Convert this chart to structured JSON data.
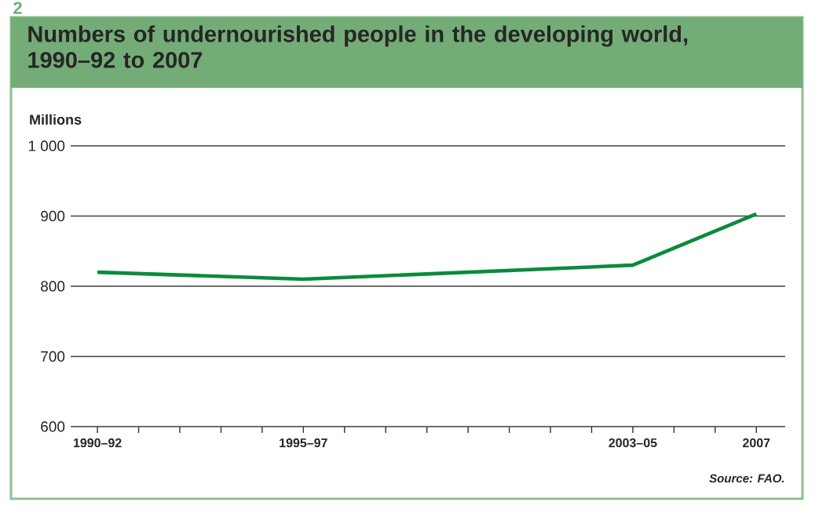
{
  "chart_data": {
    "type": "line",
    "title": "Numbers of undernourished people in the developing world, 1990–92 to 2007",
    "ylabel": "Millions",
    "categories": [
      "1990–92",
      null,
      null,
      null,
      null,
      "1995–97",
      null,
      null,
      null,
      null,
      null,
      null,
      null,
      "2003–05",
      null,
      null,
      "2007"
    ],
    "series": [
      {
        "color": "#0b8a3c",
        "values": [
          820,
          null,
          null,
          null,
          null,
          810,
          null,
          null,
          null,
          null,
          null,
          null,
          null,
          830,
          null,
          null,
          903
        ]
      }
    ],
    "ylim": [
      600,
      1000
    ],
    "yticks": [
      600,
      700,
      800,
      900,
      {
        "value": 1000,
        "label": "1 000"
      }
    ],
    "grid": "y",
    "marker": "none",
    "line_style": "solid",
    "annotations": [
      "2",
      "Source: FAO."
    ]
  }
}
